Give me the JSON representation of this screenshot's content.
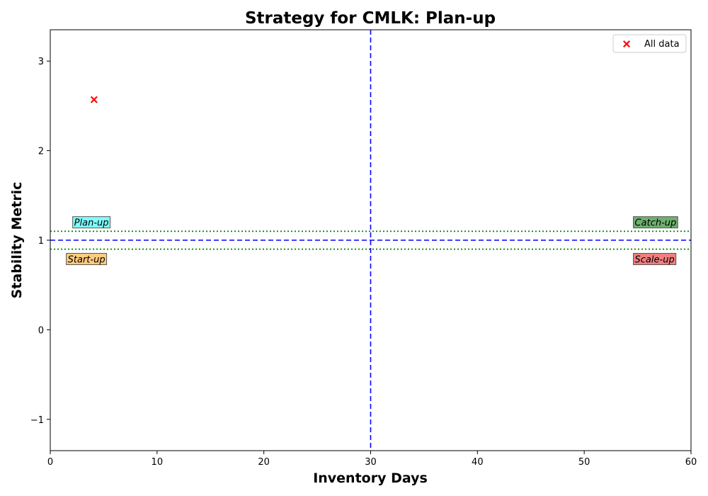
{
  "chart_data": {
    "type": "scatter",
    "title": "Strategy for CMLK: Plan-up",
    "xlabel": "Inventory Days",
    "ylabel": "Stability Metric",
    "xlim": [
      0,
      60
    ],
    "ylim": [
      -1.35,
      3.35
    ],
    "xticks": [
      0,
      10,
      20,
      30,
      40,
      50,
      60
    ],
    "yticks": [
      -1,
      0,
      1,
      2,
      3
    ],
    "grid": false,
    "legend_position": "top-right",
    "series": [
      {
        "name": "All data",
        "color": "#ff0000",
        "marker": "x-filled",
        "points": [
          {
            "x": 4.1,
            "y": 2.57
          }
        ]
      }
    ],
    "reference_lines": [
      {
        "orientation": "vertical",
        "value": 30,
        "style": "dashed",
        "color": "#0000ff"
      },
      {
        "orientation": "horizontal",
        "value": 1,
        "style": "dashed",
        "color": "#0000ff"
      },
      {
        "orientation": "horizontal",
        "value": 1.1,
        "style": "dotted",
        "color": "#008000"
      },
      {
        "orientation": "horizontal",
        "value": 0.9,
        "style": "dotted",
        "color": "#008000"
      }
    ],
    "quadrant_labels": [
      {
        "text": "Plan-up",
        "x": 2.1,
        "y": 1.2,
        "color": "#80ffff"
      },
      {
        "text": "Catch-up",
        "x": 54.6,
        "y": 1.2,
        "color": "#6fb06f"
      },
      {
        "text": "Start-up",
        "x": 1.5,
        "y": 0.79,
        "color": "#ffcc80"
      },
      {
        "text": "Scale-up",
        "x": 54.6,
        "y": 0.79,
        "color": "#f08080"
      }
    ]
  }
}
